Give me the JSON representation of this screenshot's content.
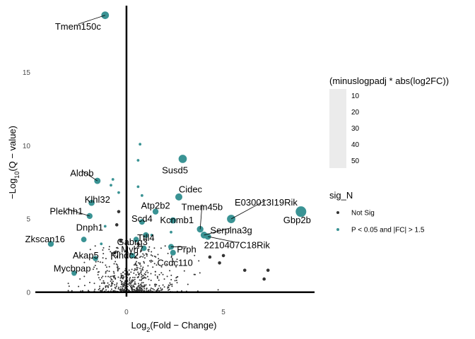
{
  "chart_data": {
    "type": "scatter",
    "title": "",
    "xlabel": "Log2(Fold - Change)",
    "ylabel": "-Log10(Q - value)",
    "xlim": [
      -4.7,
      9.7
    ],
    "ylim": [
      -0.3,
      19.7
    ],
    "x_ticks": [
      0,
      5
    ],
    "y_ticks": [
      0,
      5,
      10,
      15
    ],
    "x_tick_labels": [
      "0",
      "5"
    ],
    "y_tick_labels": [
      "0",
      "5",
      "10",
      "15"
    ],
    "grid": false,
    "reference_lines": {
      "x": 0,
      "y": 0
    },
    "size_legend": {
      "title": "(minuslogpadj * abs(log2FC))",
      "values": [
        10,
        20,
        30,
        40,
        50
      ]
    },
    "color_legend": {
      "title": "sig_N",
      "placement": "right",
      "entries": [
        {
          "label": "Not Sig",
          "color": "#333333"
        },
        {
          "label": "P < 0.05 and |FC| > 1.5",
          "color": "#3a9394"
        }
      ]
    },
    "significant_points": [
      {
        "gene": "Tmem150c",
        "x": -1.1,
        "y": 18.9,
        "size": 21,
        "label_x": -2.5,
        "label_y": 18.1
      },
      {
        "gene": "Susd5",
        "x": 2.9,
        "y": 9.1,
        "size": 26,
        "label_x": 2.5,
        "label_y": 8.3
      },
      {
        "gene": "Gbp2b",
        "x": 9.0,
        "y": 5.5,
        "size": 50,
        "label_x": 8.8,
        "label_y": 4.9
      },
      {
        "gene": "E030013I19Rik",
        "x": 5.4,
        "y": 5.0,
        "size": 27,
        "label_x": 7.2,
        "label_y": 6.1
      },
      {
        "gene": "Cidec",
        "x": 2.7,
        "y": 6.5,
        "size": 17,
        "label_x": 3.3,
        "label_y": 7.0
      },
      {
        "gene": "Aldob",
        "x": -1.5,
        "y": 7.6,
        "size": 12,
        "label_x": -2.3,
        "label_y": 8.1
      },
      {
        "gene": "Klhl32",
        "x": -1.8,
        "y": 6.1,
        "size": 11,
        "label_x": -1.5,
        "label_y": 6.3
      },
      {
        "gene": "Plekhh1",
        "x": -1.9,
        "y": 5.2,
        "size": 10,
        "label_x": -3.1,
        "label_y": 5.5
      },
      {
        "gene": "Zkscan16",
        "x": -3.9,
        "y": 3.3,
        "size": 10,
        "label_x": -4.2,
        "label_y": 3.6
      },
      {
        "gene": "Dnph1",
        "x": -2.2,
        "y": 3.6,
        "size": 8,
        "label_x": -1.9,
        "label_y": 4.4
      },
      {
        "gene": "Mycbpap",
        "x": -2.7,
        "y": 1.3,
        "size": 7,
        "label_x": -2.8,
        "label_y": 1.6
      },
      {
        "gene": "Akap5",
        "x": -1.6,
        "y": 2.3,
        "size": 7,
        "label_x": -2.1,
        "label_y": 2.5
      },
      {
        "gene": "Atp2b2",
        "x": 1.5,
        "y": 5.5,
        "size": 10,
        "label_x": 1.5,
        "label_y": 5.9
      },
      {
        "gene": "Tmem45b",
        "x": 3.8,
        "y": 4.3,
        "size": 14,
        "label_x": 3.9,
        "label_y": 5.8
      },
      {
        "gene": "Kcnmb1",
        "x": 2.4,
        "y": 4.9,
        "size": 12,
        "label_x": 2.6,
        "label_y": 4.9
      },
      {
        "gene": "Serpina3g",
        "x": 4.0,
        "y": 3.9,
        "size": 15,
        "label_x": 5.4,
        "label_y": 4.2
      },
      {
        "gene": "2210407C18Rik",
        "x": 4.2,
        "y": 3.8,
        "size": 13,
        "label_x": 5.7,
        "label_y": 3.2
      },
      {
        "gene": "Scd4",
        "x": 0.8,
        "y": 4.8,
        "size": 9,
        "label_x": 0.8,
        "label_y": 5.0
      },
      {
        "gene": "Ttll4",
        "x": 1.0,
        "y": 3.9,
        "size": 9,
        "label_x": 1.0,
        "label_y": 3.7
      },
      {
        "gene": "Gabrg3",
        "x": 0.5,
        "y": 3.6,
        "size": 8,
        "label_x": 0.3,
        "label_y": 3.4
      },
      {
        "gene": "Myh7",
        "x": 0.9,
        "y": 3.0,
        "size": 8,
        "label_x": 0.3,
        "label_y": 2.9
      },
      {
        "gene": "Klhdc2",
        "x": 0.3,
        "y": 2.5,
        "size": 8,
        "label_x": -0.1,
        "label_y": 2.5
      },
      {
        "gene": "Prph",
        "x": 2.3,
        "y": 3.1,
        "size": 9,
        "label_x": 3.1,
        "label_y": 2.9
      },
      {
        "gene": "Ccdc110",
        "x": 2.4,
        "y": 2.7,
        "size": 9,
        "label_x": 2.5,
        "label_y": 2.0
      }
    ]
  }
}
